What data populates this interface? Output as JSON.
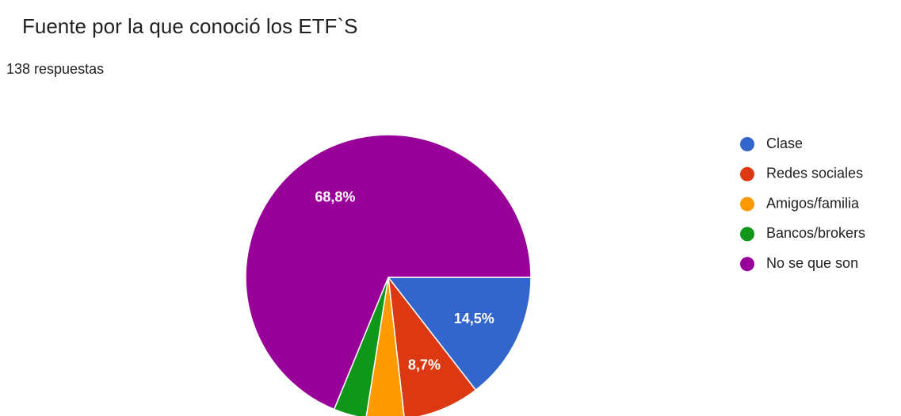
{
  "chart_data": {
    "type": "pie",
    "title": "Fuente por la que conoció los ETF`S",
    "subtitle": "138 respuestas",
    "categories": [
      "Clase",
      "Redes sociales",
      "Amigos/familia",
      "Bancos/brokers",
      "No se que son"
    ],
    "values": [
      14.5,
      8.7,
      4.3,
      3.7,
      68.8
    ],
    "value_labels": [
      "14,5%",
      "8,7%",
      null,
      null,
      "68,8%"
    ],
    "colors": [
      "#3366cc",
      "#dc3912",
      "#ff9900",
      "#109618",
      "#990099"
    ],
    "legend": "right"
  }
}
